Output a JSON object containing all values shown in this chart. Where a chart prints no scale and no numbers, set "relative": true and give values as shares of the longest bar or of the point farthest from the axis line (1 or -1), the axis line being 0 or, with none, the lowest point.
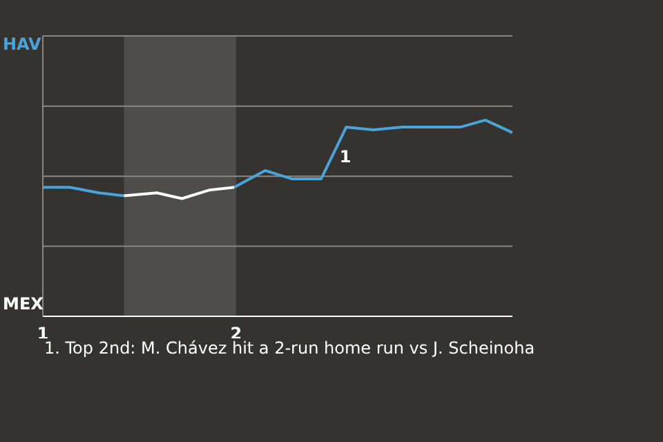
{
  "chart_data": {
    "type": "line",
    "relative": true,
    "x": [
      1,
      1.14,
      1.29,
      1.42,
      1.59,
      1.72,
      1.86,
      1.99,
      2.15,
      2.29,
      2.44,
      2.57,
      2.71,
      2.86,
      3.16,
      3.29,
      3.43
    ],
    "series": [
      {
        "color": "#4aa3d9",
        "values": [
          0.657,
          0.657,
          0.629,
          0.614,
          null,
          null,
          null,
          0.657,
          0.743,
          0.7,
          0.7,
          0.964,
          0.95,
          0.964,
          0.964,
          1,
          0.936
        ]
      },
      {
        "color": "#ffffff",
        "values": [
          null,
          null,
          null,
          0.614,
          0.629,
          0.6,
          0.643,
          0.657,
          null,
          null,
          null,
          null,
          null,
          null,
          null,
          null,
          null
        ]
      }
    ],
    "xlim": [
      1,
      3.43
    ],
    "xticks": [
      1,
      2
    ],
    "legend": false,
    "marker": "none",
    "line_style": "solid",
    "ref_lines": [
      {
        "axis": "y",
        "value": 0.357,
        "color": "#8a8886"
      },
      {
        "axis": "y",
        "value": 0.714,
        "color": "#8a8886"
      },
      {
        "axis": "y",
        "value": 1.071,
        "color": "#8a8886"
      },
      {
        "axis": "y",
        "value": 1.429,
        "color": "#8a8886"
      }
    ],
    "bands": [
      {
        "axis": "x",
        "from": 1.42,
        "to": 2,
        "color": "#4f4d4b"
      }
    ],
    "annotations": [
      "HAV",
      "MEX",
      {
        "text": "1",
        "x": 2.5,
        "y": 0.814
      },
      "1. Top 2nd: M. Chávez hit a 2-run home run vs J. Scheinoha"
    ]
  }
}
